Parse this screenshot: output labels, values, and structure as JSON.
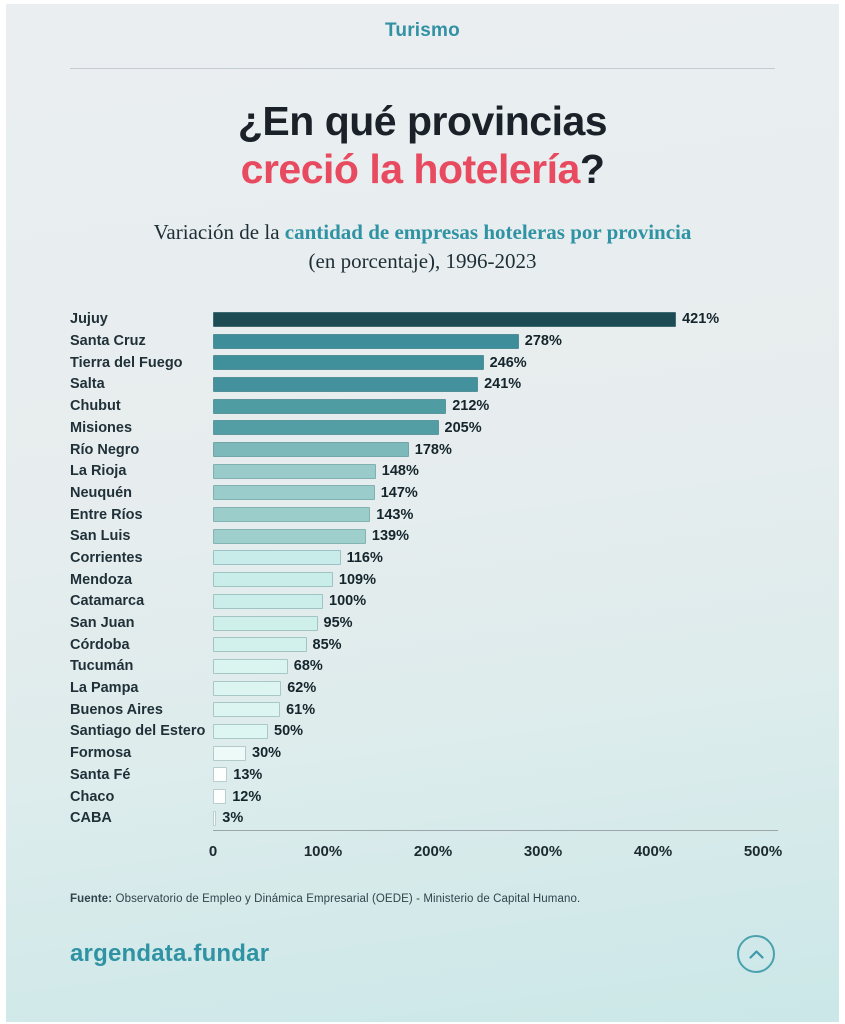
{
  "page": {
    "kicker": "Turismo",
    "title_line1": "¿En qué provincias",
    "title_line2_red": "creció la hotelería",
    "title_question_mark": "?",
    "subtitle_prefix": "Variación de la ",
    "subtitle_highlight": "cantidad de empresas hoteleras por provincia",
    "subtitle_line2": "(en porcentaje), 1996-2023",
    "source_label": "Fuente:",
    "source_text": " Observatorio de Empleo y Dinámica Empresarial (OEDE) - Ministerio de Capital Humano.",
    "footer_brand": "argendata.fundar",
    "scroll_top_icon": "chevron-up-icon"
  },
  "colors": {
    "accent_teal": "#2f93a4",
    "accent_red": "#e84a5f",
    "axis_line": "#9aa6ab",
    "bar_border": "#699194",
    "background_top": "#eaeef1",
    "background_bottom": "#cbe7e8"
  },
  "chart_data": {
    "type": "bar",
    "orientation": "horizontal",
    "title": "Variación de la cantidad de empresas hoteleras por provincia (en porcentaje), 1996-2023",
    "xlabel": "",
    "ylabel": "",
    "xlim": [
      0,
      500
    ],
    "grid": false,
    "legend": false,
    "categories": [
      "Jujuy",
      "Santa Cruz",
      "Tierra del Fuego",
      "Salta",
      "Chubut",
      "Misiones",
      "Río Negro",
      "La Rioja",
      "Neuquén",
      "Entre Ríos",
      "San Luis",
      "Corrientes",
      "Mendoza",
      "Catamarca",
      "San Juan",
      "Córdoba",
      "Tucumán",
      "La Pampa",
      "Buenos Aires",
      "Santiago del Estero",
      "Formosa",
      "Santa Fé",
      "Chaco",
      "CABA"
    ],
    "values": [
      421,
      278,
      246,
      241,
      212,
      205,
      178,
      148,
      147,
      143,
      139,
      116,
      109,
      100,
      95,
      85,
      68,
      62,
      61,
      50,
      30,
      13,
      12,
      3
    ],
    "value_labels": [
      "421%",
      "278%",
      "246%",
      "241%",
      "212%",
      "205%",
      "178%",
      "148%",
      "147%",
      "143%",
      "139%",
      "116%",
      "109%",
      "100%",
      "95%",
      "85%",
      "68%",
      "62%",
      "61%",
      "50%",
      "30%",
      "13%",
      "12%",
      "3%"
    ],
    "bar_colors": [
      "#1d4b54",
      "#3e8d9b",
      "#40909c",
      "#43919d",
      "#509ca3",
      "#539ea4",
      "#7db9bb",
      "#98cbc9",
      "#99ccca",
      "#9bcdca",
      "#9ecfcc",
      "#c8ece9",
      "#c9ede9",
      "#cbeeea",
      "#cfefeb",
      "#d2f0ec",
      "#daf4f0",
      "#dcf5f1",
      "#dcf5f1",
      "#def6f2",
      "#eefaf8",
      "#fcfffe",
      "#fdfffe",
      "#ffffff"
    ],
    "x_ticks": [
      "0",
      "100%",
      "200%",
      "300%",
      "400%",
      "500%"
    ],
    "x_tick_values": [
      0,
      100,
      200,
      300,
      400,
      500
    ]
  }
}
